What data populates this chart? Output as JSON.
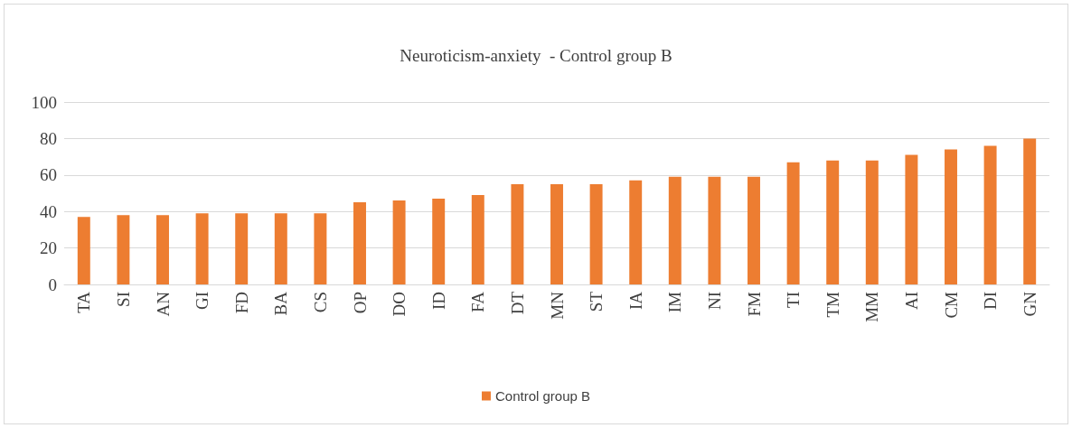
{
  "chart_data": {
    "type": "bar",
    "title": "Neuroticism-anxiety  - Control group B",
    "categories": [
      "TA",
      "SI",
      "AN",
      "GI",
      "FD",
      "BA",
      "CS",
      "OP",
      "DO",
      "ID",
      "FA",
      "DT",
      "MN",
      "ST",
      "IA",
      "IM",
      "NI",
      "FM",
      "TI",
      "TM",
      "MM",
      "AI",
      "CM",
      "DI",
      "GN"
    ],
    "series": [
      {
        "name": "Control group B",
        "color": "#ed7d31",
        "values": [
          37,
          38,
          38,
          39,
          39,
          39,
          39,
          45,
          46,
          47,
          49,
          55,
          55,
          55,
          57,
          59,
          59,
          59,
          67,
          68,
          68,
          71,
          74,
          76,
          80
        ]
      }
    ],
    "ylim": [
      0,
      100
    ],
    "yticks": [
      0,
      20,
      40,
      60,
      80,
      100
    ],
    "grid": "y",
    "legend": "bottom"
  }
}
